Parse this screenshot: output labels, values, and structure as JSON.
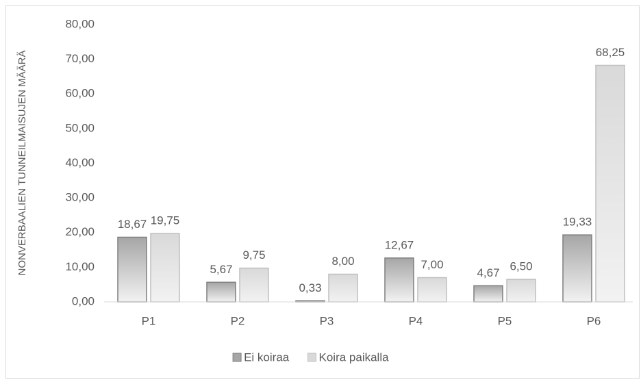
{
  "chart_data": {
    "type": "bar",
    "y_label": "NONVERBAALIEN TUNNEILMAISUJEN MÄÄRÄ",
    "categories": [
      "P1",
      "P2",
      "P3",
      "P4",
      "P5",
      "P6"
    ],
    "series": [
      {
        "name": "Ei koiraa",
        "color": "#a6a6a6",
        "values": [
          18.67,
          5.67,
          0.33,
          12.67,
          4.67,
          19.33
        ],
        "value_labels": [
          "18,67",
          "5,67",
          "0,33",
          "12,67",
          "4,67",
          "19,33"
        ]
      },
      {
        "name": "Koira paikalla",
        "color": "#d9d9d9",
        "values": [
          19.75,
          9.75,
          8.0,
          7.0,
          6.5,
          68.25
        ],
        "value_labels": [
          "19,75",
          "9,75",
          "8,00",
          "7,00",
          "6,50",
          "68,25"
        ]
      }
    ],
    "ylim": [
      0,
      80
    ],
    "yticks": [
      {
        "value": 0,
        "label": "0,00"
      },
      {
        "value": 10,
        "label": "10,00"
      },
      {
        "value": 20,
        "label": "20,00"
      },
      {
        "value": 30,
        "label": "30,00"
      },
      {
        "value": 40,
        "label": "40,00"
      },
      {
        "value": 50,
        "label": "50,00"
      },
      {
        "value": 60,
        "label": "60,00"
      },
      {
        "value": 70,
        "label": "70,00"
      },
      {
        "value": 80,
        "label": "80,00"
      }
    ],
    "grid": false,
    "legend": "bottom"
  }
}
